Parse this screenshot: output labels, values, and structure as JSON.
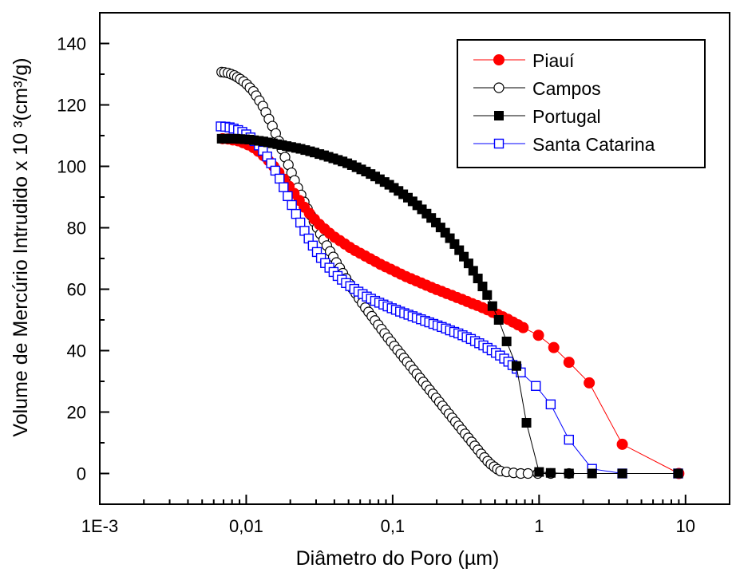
{
  "chart_data": {
    "type": "scatter",
    "x_scale": "log",
    "xlabel": "Diâmetro do Poro (µm)",
    "ylabel": "Volume de Mercúrio Intrudido x 10 ³(cm³/g)",
    "xlim": [
      0.001,
      20
    ],
    "ylim": [
      -10,
      150
    ],
    "x_ticks": [
      0.001,
      0.01,
      0.1,
      1,
      10
    ],
    "x_tick_labels": [
      "1E-3",
      "0,01",
      "0,1",
      "1",
      "10"
    ],
    "y_ticks": [
      0,
      20,
      40,
      60,
      80,
      100,
      120,
      140
    ],
    "y_tick_labels": [
      "0",
      "20",
      "40",
      "60",
      "80",
      "100",
      "120",
      "140"
    ],
    "grid": false,
    "legend_position": "top-right",
    "series": [
      {
        "name": "Piauí",
        "color": "#ff0000",
        "marker": "filled-circle",
        "x": [
          0.0069,
          0.0075,
          0.0081,
          0.0088,
          0.0095,
          0.0103,
          0.0112,
          0.0121,
          0.0131,
          0.0142,
          0.0154,
          0.0167,
          0.0181,
          0.0196,
          0.0212,
          0.023,
          0.0249,
          0.027,
          0.0292,
          0.0316,
          0.0343,
          0.0371,
          0.0402,
          0.0436,
          0.0472,
          0.0511,
          0.0554,
          0.06,
          0.065,
          0.0704,
          0.0763,
          0.0826,
          0.0895,
          0.097,
          0.1051,
          0.1138,
          0.1233,
          0.1336,
          0.1447,
          0.1568,
          0.1699,
          0.184,
          0.1994,
          0.216,
          0.234,
          0.2535,
          0.2747,
          0.2976,
          0.3224,
          0.3493,
          0.3784,
          0.41,
          0.4442,
          0.4812,
          0.5214,
          0.5649,
          0.612,
          0.663,
          0.7183,
          0.7782,
          0.99,
          1.26,
          1.6,
          2.2,
          3.7,
          9.0
        ],
        "y": [
          109.0,
          108.9,
          108.6,
          108.3,
          107.7,
          107.0,
          106.1,
          104.9,
          103.5,
          101.9,
          100.0,
          98.0,
          95.8,
          93.5,
          91.2,
          88.9,
          86.7,
          84.7,
          82.8,
          81.1,
          79.6,
          78.2,
          76.9,
          75.8,
          74.7,
          73.6,
          72.6,
          71.7,
          70.8,
          69.9,
          69.0,
          68.1,
          67.3,
          66.5,
          65.7,
          64.9,
          64.1,
          63.4,
          62.7,
          62.0,
          61.3,
          60.6,
          59.9,
          59.3,
          58.6,
          58.0,
          57.3,
          56.7,
          56.0,
          55.3,
          54.7,
          54.0,
          53.3,
          52.5,
          51.8,
          51.0,
          50.2,
          49.3,
          48.4,
          47.5,
          45.0,
          41.0,
          36.2,
          29.5,
          9.5,
          0.0
        ]
      },
      {
        "name": "Campos",
        "color": "#000000",
        "marker": "open-circle",
        "x": [
          0.0068,
          0.0071,
          0.0075,
          0.0079,
          0.0083,
          0.0087,
          0.0091,
          0.0096,
          0.0101,
          0.0106,
          0.0112,
          0.0117,
          0.0123,
          0.013,
          0.0136,
          0.0143,
          0.0151,
          0.0159,
          0.0167,
          0.0175,
          0.0184,
          0.0194,
          0.0204,
          0.0214,
          0.0225,
          0.0237,
          0.0249,
          0.0262,
          0.0276,
          0.029,
          0.0305,
          0.0321,
          0.0338,
          0.0355,
          0.0374,
          0.0393,
          0.0413,
          0.0435,
          0.0457,
          0.0481,
          0.0506,
          0.0532,
          0.056,
          0.0589,
          0.0619,
          0.0651,
          0.0685,
          0.0721,
          0.0758,
          0.0797,
          0.0839,
          0.0882,
          0.0928,
          0.0976,
          0.1027,
          0.108,
          0.1136,
          0.1195,
          0.1257,
          0.1322,
          0.1391,
          0.1463,
          0.1539,
          0.1619,
          0.1703,
          0.1791,
          0.1884,
          0.1982,
          0.2085,
          0.2193,
          0.2307,
          0.2427,
          0.2553,
          0.2685,
          0.2825,
          0.2971,
          0.3126,
          0.3288,
          0.3459,
          0.3638,
          0.3827,
          0.4026,
          0.4235,
          0.4455,
          0.4686,
          0.4929,
          0.5185,
          0.5455,
          0.6,
          0.67,
          0.75,
          0.84,
          0.98,
          1.2,
          1.6
        ],
        "y": [
          130.7,
          130.6,
          130.4,
          130.0,
          129.6,
          129.0,
          128.4,
          127.6,
          126.7,
          125.6,
          124.4,
          123.0,
          121.4,
          119.6,
          117.6,
          115.4,
          113.1,
          110.7,
          108.2,
          105.6,
          103.0,
          100.5,
          97.9,
          95.4,
          93.0,
          90.7,
          88.4,
          86.2,
          84.1,
          82.0,
          80.0,
          78.0,
          76.1,
          74.2,
          72.3,
          70.5,
          68.7,
          66.9,
          65.2,
          63.5,
          61.8,
          60.2,
          58.6,
          57.0,
          55.5,
          54.0,
          52.6,
          51.2,
          49.8,
          48.4,
          47.0,
          45.6,
          44.2,
          42.9,
          41.5,
          40.2,
          38.9,
          37.6,
          36.3,
          35.0,
          33.7,
          32.4,
          31.1,
          29.8,
          28.5,
          27.2,
          25.9,
          24.6,
          23.3,
          22.0,
          20.7,
          19.4,
          18.1,
          16.8,
          15.5,
          14.2,
          12.9,
          11.6,
          10.3,
          9.0,
          7.7,
          6.4,
          5.2,
          4.0,
          3.0,
          2.2,
          1.4,
          0.8,
          0.5,
          0.2,
          0.0,
          0.0,
          0.0,
          0.0,
          0.0
        ]
      },
      {
        "name": "Portugal",
        "color": "#000000",
        "marker": "filled-square",
        "x": [
          0.0068,
          0.0073,
          0.0079,
          0.0085,
          0.0091,
          0.0098,
          0.0105,
          0.0113,
          0.0122,
          0.0131,
          0.0141,
          0.0152,
          0.0163,
          0.0176,
          0.0189,
          0.0203,
          0.0219,
          0.0235,
          0.0253,
          0.0273,
          0.0293,
          0.0316,
          0.034,
          0.0365,
          0.0393,
          0.0423,
          0.0455,
          0.049,
          0.0527,
          0.0567,
          0.061,
          0.0657,
          0.0707,
          0.076,
          0.0818,
          0.0881,
          0.0948,
          0.102,
          0.1097,
          0.1181,
          0.1271,
          0.1368,
          0.1472,
          0.1584,
          0.1704,
          0.1834,
          0.1973,
          0.2123,
          0.2285,
          0.2459,
          0.2646,
          0.2847,
          0.3064,
          0.3297,
          0.3548,
          0.3818,
          0.4108,
          0.442,
          0.48,
          0.53,
          0.6,
          0.7,
          0.82,
          1.0,
          1.2,
          1.6,
          2.3,
          3.7,
          8.9
        ],
        "y": [
          109.0,
          109.0,
          109.0,
          109.0,
          108.9,
          108.8,
          108.7,
          108.5,
          108.3,
          108.1,
          107.8,
          107.5,
          107.2,
          106.9,
          106.6,
          106.3,
          106.0,
          105.7,
          105.3,
          104.9,
          104.5,
          104.0,
          103.6,
          103.1,
          102.6,
          102.1,
          101.6,
          101.0,
          100.4,
          99.7,
          99.0,
          98.3,
          97.5,
          96.7,
          95.8,
          94.9,
          94.0,
          93.0,
          92.0,
          90.9,
          89.8,
          88.6,
          87.3,
          86.0,
          84.6,
          83.2,
          81.7,
          80.1,
          78.4,
          76.6,
          74.7,
          72.7,
          70.6,
          68.4,
          66.0,
          63.5,
          60.9,
          58.1,
          54.5,
          50.0,
          43.0,
          35.0,
          16.5,
          0.5,
          0.2,
          0.0,
          0.0,
          0.0,
          0.0
        ]
      },
      {
        "name": "Santa Catarina",
        "color": "#0000ff",
        "marker": "open-square",
        "x": [
          0.0067,
          0.0072,
          0.0077,
          0.0082,
          0.0088,
          0.0094,
          0.01,
          0.0107,
          0.0114,
          0.0122,
          0.013,
          0.0139,
          0.0148,
          0.0158,
          0.0169,
          0.018,
          0.0192,
          0.0205,
          0.0219,
          0.0234,
          0.025,
          0.0267,
          0.0285,
          0.0304,
          0.0324,
          0.0346,
          0.037,
          0.0395,
          0.0421,
          0.045,
          0.048,
          0.0513,
          0.0547,
          0.0584,
          0.0624,
          0.0666,
          0.0711,
          0.0759,
          0.081,
          0.0865,
          0.0924,
          0.0986,
          0.1053,
          0.1124,
          0.12,
          0.1282,
          0.1368,
          0.1461,
          0.156,
          0.1665,
          0.1778,
          0.1898,
          0.2026,
          0.2163,
          0.231,
          0.2466,
          0.2633,
          0.2811,
          0.3001,
          0.3204,
          0.3421,
          0.3652,
          0.39,
          0.4164,
          0.4445,
          0.4746,
          0.5067,
          0.5409,
          0.5775,
          0.6166,
          0.6583,
          0.7028,
          0.7503,
          0.95,
          1.2,
          1.6,
          2.3,
          3.7,
          8.9
        ],
        "y": [
          113.0,
          112.9,
          112.7,
          112.3,
          111.8,
          111.2,
          110.4,
          109.4,
          108.2,
          106.8,
          105.1,
          103.2,
          101.0,
          98.6,
          96.0,
          93.2,
          90.3,
          87.4,
          84.5,
          81.7,
          79.0,
          76.5,
          74.2,
          72.1,
          70.2,
          68.5,
          67.0,
          65.6,
          64.3,
          63.1,
          62.0,
          61.0,
          60.1,
          59.2,
          58.4,
          57.6,
          56.9,
          56.2,
          55.6,
          55.0,
          54.4,
          53.8,
          53.3,
          52.7,
          52.2,
          51.7,
          51.2,
          50.7,
          50.2,
          49.7,
          49.2,
          48.7,
          48.2,
          47.7,
          47.2,
          46.6,
          46.1,
          45.6,
          45.0,
          44.4,
          43.8,
          43.1,
          42.4,
          41.7,
          40.9,
          40.1,
          39.3,
          38.4,
          37.4,
          36.4,
          35.3,
          34.1,
          32.9,
          28.5,
          22.5,
          11.0,
          1.5,
          0.0,
          0.0
        ]
      }
    ]
  }
}
